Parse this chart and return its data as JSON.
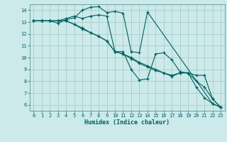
{
  "title": "",
  "xlabel": "Humidex (Indice chaleur)",
  "bg_color": "#cceaea",
  "grid_color": "#aacccc",
  "line_color": "#006060",
  "spine_color": "#448888",
  "xlim": [
    -0.5,
    23.5
  ],
  "ylim": [
    5.5,
    14.5
  ],
  "xticks": [
    0,
    1,
    2,
    3,
    4,
    5,
    6,
    7,
    8,
    9,
    10,
    11,
    12,
    13,
    14,
    15,
    16,
    17,
    18,
    19,
    20,
    21,
    22,
    23
  ],
  "yticks": [
    6,
    7,
    8,
    9,
    10,
    11,
    12,
    13,
    14
  ],
  "tick_fontsize": 5.0,
  "xlabel_fontsize": 6.0,
  "lines": [
    {
      "x": [
        0,
        1,
        2,
        3,
        4,
        5,
        6,
        7,
        8,
        9,
        10,
        11,
        12,
        13,
        14,
        22,
        23
      ],
      "y": [
        13.1,
        13.1,
        13.1,
        12.9,
        13.2,
        13.35,
        14.0,
        14.25,
        14.3,
        13.8,
        13.9,
        13.75,
        10.5,
        10.4,
        13.85,
        6.1,
        5.8
      ]
    },
    {
      "x": [
        0,
        1,
        2,
        3,
        4,
        5,
        6,
        7,
        8,
        9,
        10,
        11,
        12,
        13,
        14,
        15,
        16,
        17,
        18,
        19,
        20,
        21,
        22,
        23
      ],
      "y": [
        13.1,
        13.1,
        13.1,
        13.1,
        13.3,
        13.5,
        13.3,
        13.5,
        13.6,
        13.5,
        10.5,
        10.5,
        9.0,
        8.1,
        8.2,
        10.3,
        10.4,
        9.8,
        8.8,
        8.7,
        7.5,
        6.6,
        6.1,
        5.8
      ]
    },
    {
      "x": [
        0,
        1,
        2,
        3,
        4,
        5,
        6,
        7,
        8,
        9,
        10,
        11,
        12,
        13,
        14,
        15,
        16,
        17,
        18,
        19,
        20,
        21,
        22,
        23
      ],
      "y": [
        13.1,
        13.1,
        13.1,
        13.1,
        13.1,
        12.8,
        12.4,
        12.1,
        11.8,
        11.4,
        10.5,
        10.3,
        10.0,
        9.6,
        9.3,
        9.0,
        8.7,
        8.4,
        8.7,
        8.7,
        8.0,
        7.5,
        6.5,
        5.8
      ]
    },
    {
      "x": [
        0,
        1,
        2,
        3,
        4,
        5,
        6,
        7,
        8,
        9,
        10,
        11,
        12,
        13,
        14,
        15,
        16,
        17,
        18,
        19,
        20,
        21,
        22,
        23
      ],
      "y": [
        13.1,
        13.1,
        13.1,
        13.1,
        13.1,
        12.8,
        12.5,
        12.1,
        11.8,
        11.4,
        10.5,
        10.3,
        9.9,
        9.5,
        9.2,
        8.9,
        8.7,
        8.5,
        8.7,
        8.7,
        8.5,
        8.5,
        6.5,
        5.8
      ]
    }
  ]
}
